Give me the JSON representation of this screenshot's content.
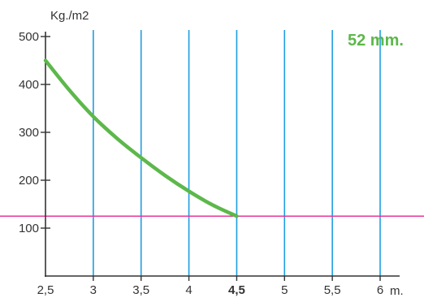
{
  "chart_data": {
    "type": "line",
    "ylabel": "Kg./m2",
    "xlabel": "m.",
    "annotation": "52 mm.",
    "x_ticks": [
      {
        "value": 2.5,
        "label": "2,5"
      },
      {
        "value": 3,
        "label": "3"
      },
      {
        "value": 3.5,
        "label": "3,5"
      },
      {
        "value": 4,
        "label": "4"
      },
      {
        "value": 4.5,
        "label": "4,5",
        "highlight": true
      },
      {
        "value": 5,
        "label": "5"
      },
      {
        "value": 5.5,
        "label": "5,5"
      },
      {
        "value": 6,
        "label": "6"
      }
    ],
    "y_ticks": [
      {
        "value": 100,
        "label": "100"
      },
      {
        "value": 200,
        "label": "200"
      },
      {
        "value": 300,
        "label": "300"
      },
      {
        "value": 400,
        "label": "400"
      },
      {
        "value": 500,
        "label": "500"
      }
    ],
    "xlim": [
      2.5,
      6
    ],
    "ylim": [
      0,
      500
    ],
    "grid": "vertical",
    "series": [
      {
        "x": [
          2.5,
          2.75,
          3,
          3.25,
          3.5,
          3.75,
          4,
          4.25,
          4.5
        ],
        "y": [
          450,
          388,
          333,
          287,
          247,
          210,
          177,
          148,
          125
        ]
      }
    ],
    "reference_line": {
      "y": 125
    },
    "colors": {
      "curve": "#5cb84a",
      "grid": "#1e9ee0",
      "reference": "#e8349a",
      "axis": "#333333",
      "annotation": "#5cb84a",
      "highlight_tick": "#5cb84a"
    }
  }
}
